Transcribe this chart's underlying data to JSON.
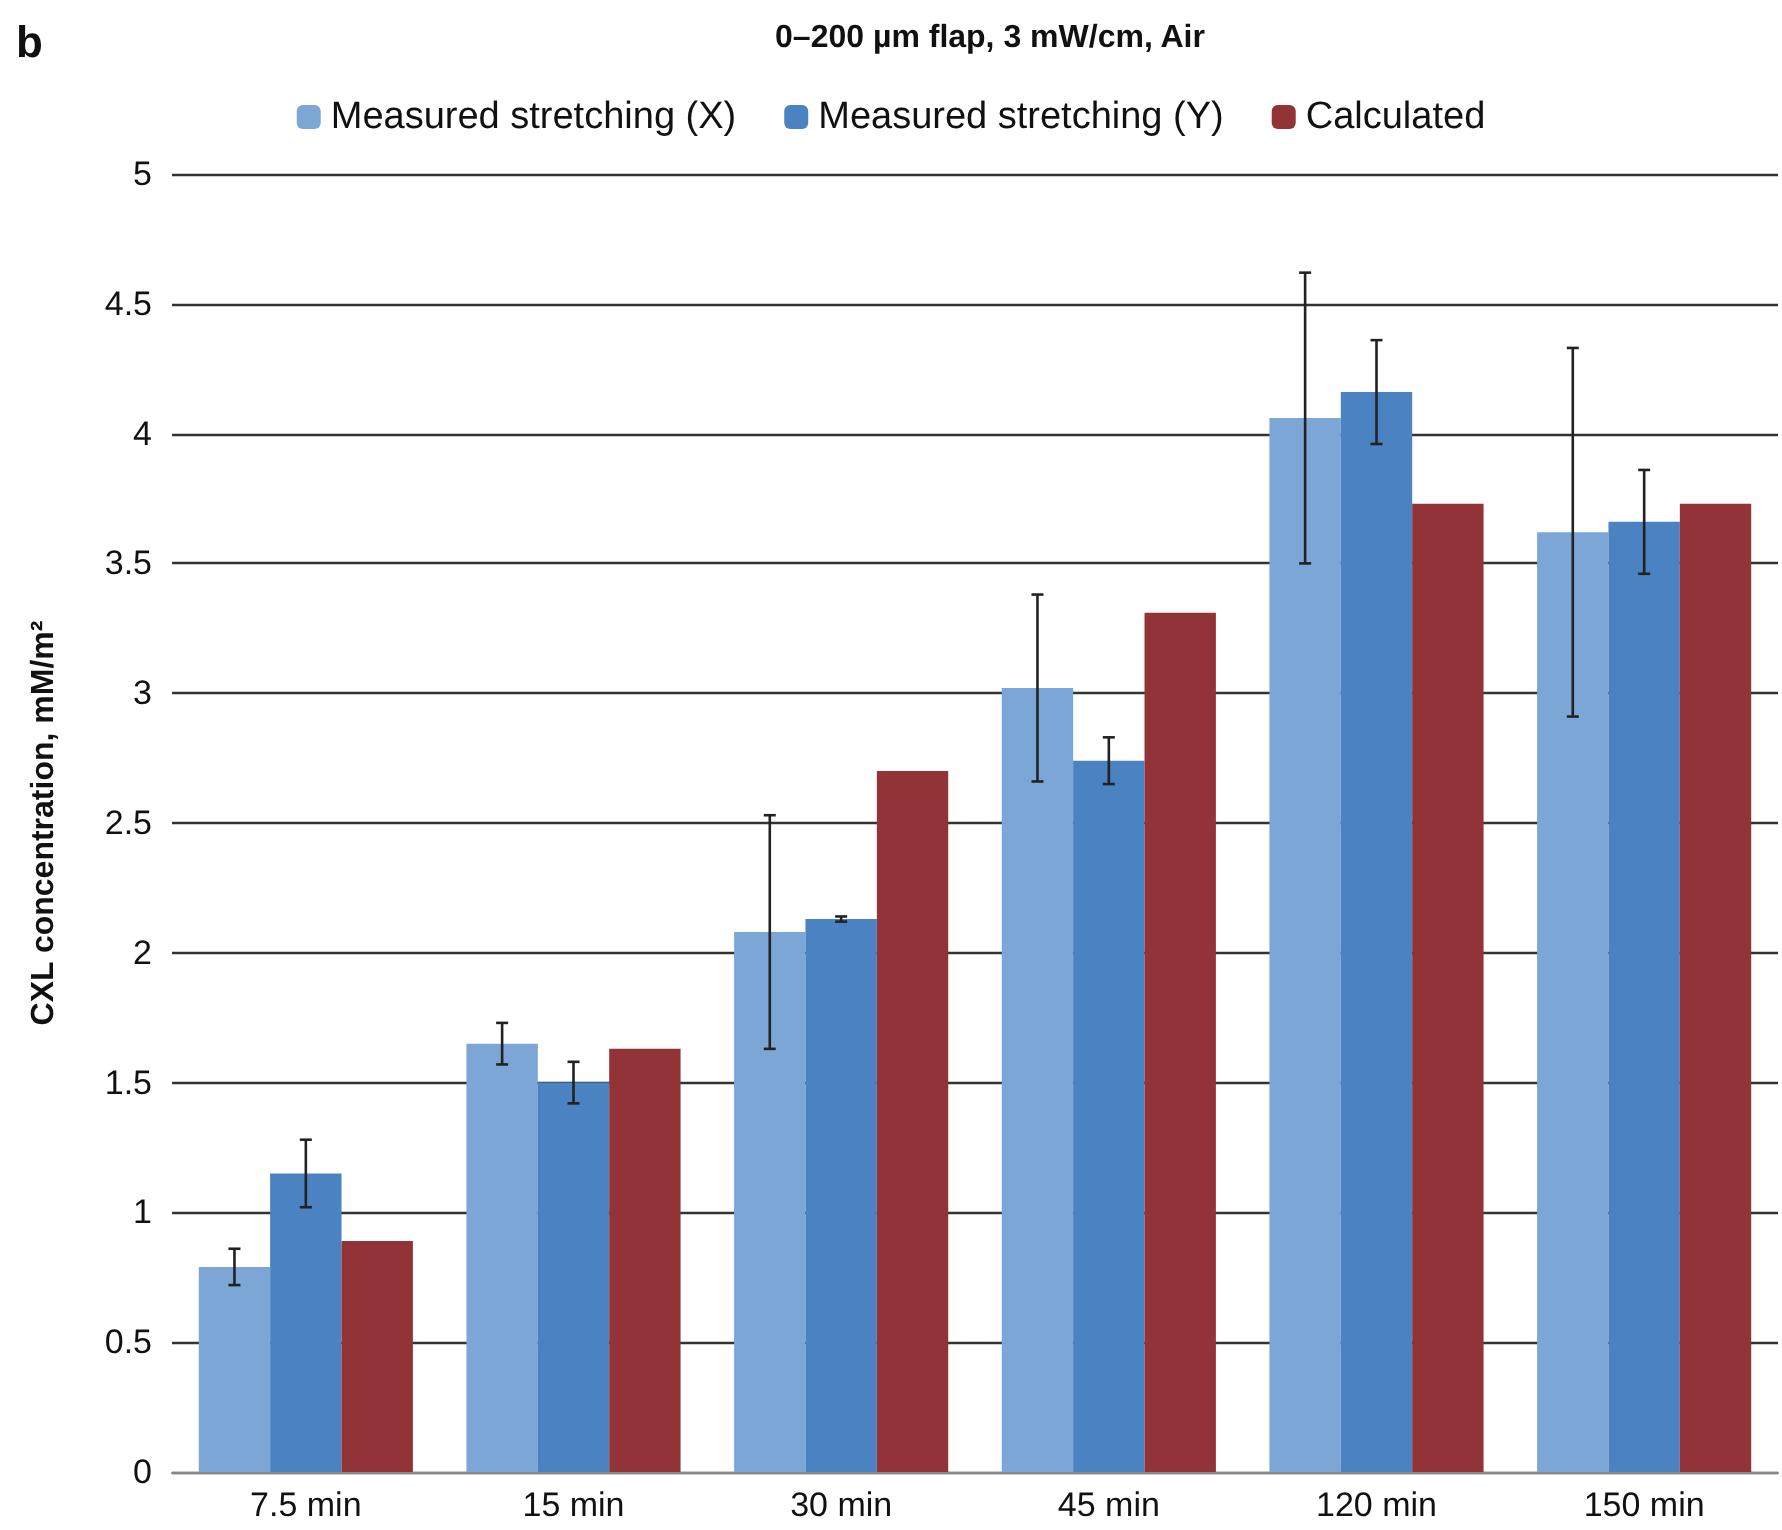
{
  "chart_data": {
    "type": "bar",
    "title": "0–200 µm flap, 3 mW/cm, Air",
    "ylabel": "CXL concentration, mM/m²",
    "annotations": [
      "b"
    ],
    "categories": [
      "7.5 min",
      "15 min",
      "30 min",
      "45 min",
      "120 min",
      "150 min"
    ],
    "series": [
      {
        "name": "Measured stretching (X)",
        "color": "#7ba6d6",
        "values": [
          0.79,
          1.65,
          2.08,
          3.02,
          4.06,
          3.62
        ],
        "errors": [
          0.07,
          0.08,
          0.45,
          0.36,
          0.56,
          0.71
        ]
      },
      {
        "name": "Measured stretching (Y)",
        "color": "#4b82c2",
        "values": [
          1.15,
          1.5,
          2.13,
          2.74,
          4.16,
          3.66
        ],
        "errors": [
          0.13,
          0.08,
          0.01,
          0.09,
          0.2,
          0.2
        ]
      },
      {
        "name": "Calculated",
        "color": "#923437",
        "values": [
          0.89,
          1.63,
          2.7,
          3.31,
          3.73,
          3.73
        ]
      }
    ],
    "ylim": [
      0,
      5
    ],
    "yticks": [
      0,
      0.5,
      1,
      1.5,
      2,
      2.5,
      3,
      3.5,
      4,
      4.5,
      5
    ],
    "grid": "y",
    "legend": "top"
  }
}
